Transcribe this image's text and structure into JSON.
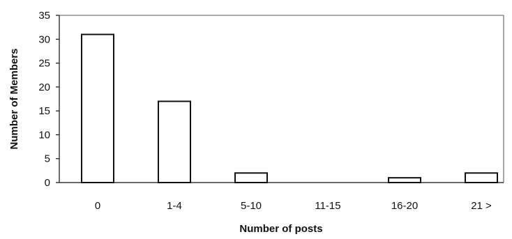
{
  "chart_data": {
    "type": "bar",
    "categories": [
      "0",
      "1-4",
      "5-10",
      "11-15",
      "16-20",
      "21 >"
    ],
    "values": [
      31,
      17,
      2,
      0,
      1,
      2
    ],
    "title": "",
    "xlabel": "Number of posts",
    "ylabel": "Number of Members",
    "ylim": [
      0,
      35
    ],
    "yticks": [
      0,
      5,
      10,
      15,
      20,
      25,
      30,
      35
    ],
    "grid": false,
    "legend": "none",
    "colors": {
      "bar_fill": "#ffffff",
      "bar_stroke": "#111111",
      "axis": "#111111"
    }
  }
}
